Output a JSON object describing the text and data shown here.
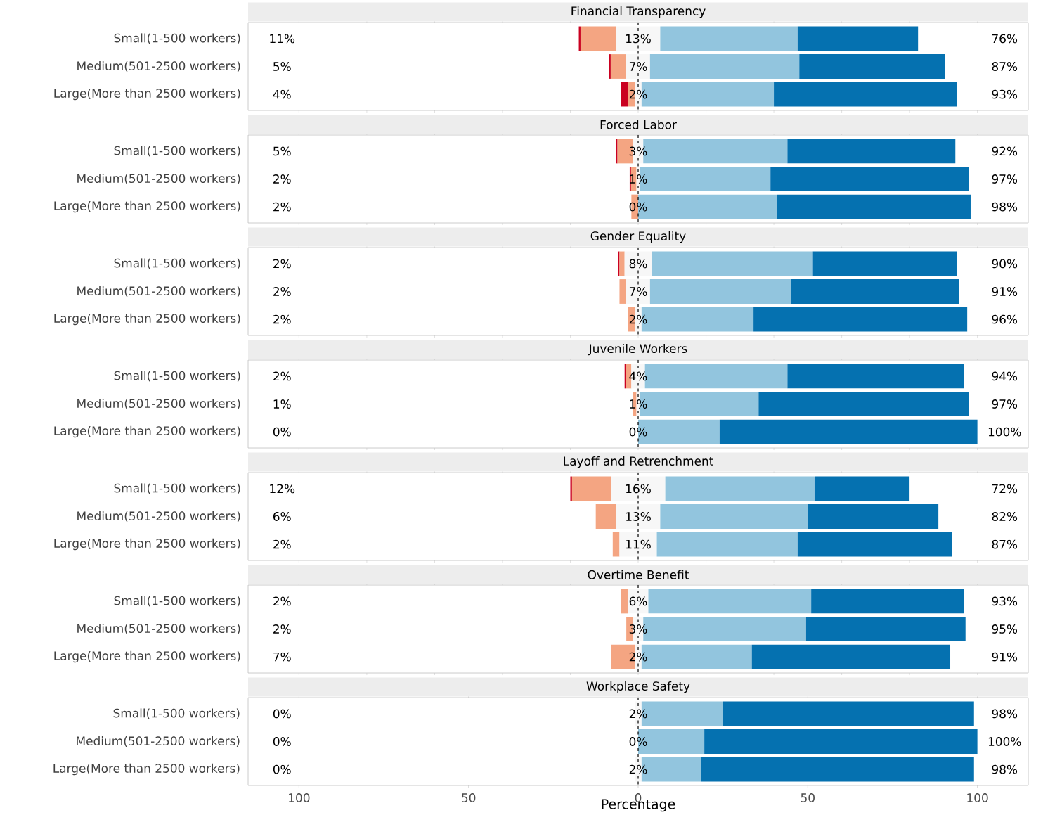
{
  "chart_data": [
    {
      "type": "bar",
      "orientation": "horizontal",
      "title": "Financial Transparency",
      "categories": [
        "Small(1-500 workers)",
        "Medium(501-2500 workers)",
        "Large(More than 2500 workers)"
      ],
      "xlim": [
        -115,
        115
      ],
      "tick_labels": "y",
      "ref_lines": [
        {
          "axis": "x",
          "value": 0,
          "line_style": "dashed"
        }
      ],
      "series": [
        {
          "color": "#ca0020",
          "values": [
            0.5,
            0.4,
            2
          ],
          "base": [
            -17.5,
            -8.5,
            -5
          ]
        },
        {
          "color": "#f4a582",
          "values": [
            10.5,
            4.6,
            2
          ],
          "base": [
            -17,
            -8.1,
            -3
          ]
        },
        {
          "color": "#f7f7f7",
          "values": [
            13,
            7,
            2
          ],
          "base": [
            -6.5,
            -3.5,
            -1
          ],
          "value_labels": [
            "13%",
            "7%",
            "2%"
          ]
        },
        {
          "color": "#92c5de",
          "values": [
            40.5,
            44,
            39
          ],
          "base": [
            6.5,
            3.5,
            1
          ]
        },
        {
          "color": "#0571b0",
          "values": [
            35.5,
            43,
            54
          ],
          "base": [
            47,
            47.5,
            40
          ]
        }
      ],
      "annotations": [
        "11%",
        "76%",
        "5%",
        "87%",
        "4%",
        "93%"
      ]
    },
    {
      "type": "bar",
      "orientation": "horizontal",
      "title": "Forced Labor",
      "categories": [
        "Small(1-500 workers)",
        "Medium(501-2500 workers)",
        "Large(More than 2500 workers)"
      ],
      "xlim": [
        -115,
        115
      ],
      "tick_labels": "y",
      "ref_lines": [
        {
          "axis": "x",
          "value": 0,
          "line_style": "dashed"
        }
      ],
      "series": [
        {
          "color": "#ca0020",
          "values": [
            0.4,
            0.4,
            null
          ],
          "base": [
            -6.5,
            -2.5,
            null
          ]
        },
        {
          "color": "#f4a582",
          "values": [
            4.6,
            1.6,
            2
          ],
          "base": [
            -6.1,
            -2.1,
            -2
          ]
        },
        {
          "color": "#f7f7f7",
          "values": [
            3,
            1,
            0
          ],
          "base": [
            -1.5,
            -0.5,
            null
          ],
          "value_labels": [
            "3%",
            "1%",
            "0%"
          ]
        },
        {
          "color": "#92c5de",
          "values": [
            42.5,
            38.5,
            41
          ],
          "base": [
            1.5,
            0.5,
            0
          ]
        },
        {
          "color": "#0571b0",
          "values": [
            49.5,
            58.5,
            57
          ],
          "base": [
            44,
            39,
            41
          ]
        }
      ],
      "annotations": [
        "5%",
        "92%",
        "2%",
        "97%",
        "2%",
        "98%"
      ]
    },
    {
      "type": "bar",
      "orientation": "horizontal",
      "title": "Gender Equality",
      "categories": [
        "Small(1-500 workers)",
        "Medium(501-2500 workers)",
        "Large(More than 2500 workers)"
      ],
      "xlim": [
        -115,
        115
      ],
      "tick_labels": "y",
      "ref_lines": [
        {
          "axis": "x",
          "value": 0,
          "line_style": "dashed"
        }
      ],
      "series": [
        {
          "color": "#ca0020",
          "values": [
            0.5,
            null,
            null
          ],
          "base": [
            -6,
            null,
            null
          ]
        },
        {
          "color": "#f4a582",
          "values": [
            1.5,
            2,
            2
          ],
          "base": [
            -5.5,
            -5.5,
            -3
          ]
        },
        {
          "color": "#f7f7f7",
          "values": [
            8,
            7,
            2
          ],
          "base": [
            -4,
            -3.5,
            -1
          ],
          "value_labels": [
            "8%",
            "7%",
            "2%"
          ]
        },
        {
          "color": "#92c5de",
          "values": [
            47.5,
            41.5,
            33
          ],
          "base": [
            4,
            3.5,
            1
          ]
        },
        {
          "color": "#0571b0",
          "values": [
            42.5,
            49.5,
            63
          ],
          "base": [
            51.5,
            45,
            34
          ]
        }
      ],
      "annotations": [
        "2%",
        "90%",
        "2%",
        "91%",
        "2%",
        "96%"
      ]
    },
    {
      "type": "bar",
      "orientation": "horizontal",
      "title": "Juvenile Workers",
      "categories": [
        "Small(1-500 workers)",
        "Medium(501-2500 workers)",
        "Large(More than 2500 workers)"
      ],
      "xlim": [
        -115,
        115
      ],
      "tick_labels": "y",
      "ref_lines": [
        {
          "axis": "x",
          "value": 0,
          "line_style": "dashed"
        }
      ],
      "series": [
        {
          "color": "#ca0020",
          "values": [
            0.4,
            null,
            null
          ],
          "base": [
            -4,
            null,
            null
          ]
        },
        {
          "color": "#f4a582",
          "values": [
            1.6,
            1,
            null
          ],
          "base": [
            -3.6,
            -1.5,
            null
          ]
        },
        {
          "color": "#f7f7f7",
          "values": [
            4,
            1,
            0
          ],
          "base": [
            -2,
            -0.5,
            null
          ],
          "value_labels": [
            "4%",
            "1%",
            "0%"
          ]
        },
        {
          "color": "#92c5de",
          "values": [
            42,
            35,
            24
          ],
          "base": [
            2,
            0.5,
            0
          ]
        },
        {
          "color": "#0571b0",
          "values": [
            52,
            62,
            76
          ],
          "base": [
            44,
            35.5,
            24
          ]
        }
      ],
      "annotations": [
        "2%",
        "94%",
        "1%",
        "97%",
        "0%",
        "100%"
      ]
    },
    {
      "type": "bar",
      "orientation": "horizontal",
      "title": "Layoff and Retrenchment",
      "categories": [
        "Small(1-500 workers)",
        "Medium(501-2500 workers)",
        "Large(More than 2500 workers)"
      ],
      "xlim": [
        -115,
        115
      ],
      "tick_labels": "y",
      "ref_lines": [
        {
          "axis": "x",
          "value": 0,
          "line_style": "dashed"
        }
      ],
      "series": [
        {
          "color": "#ca0020",
          "values": [
            0.5,
            null,
            null
          ],
          "base": [
            -20,
            null,
            null
          ]
        },
        {
          "color": "#f4a582",
          "values": [
            11.5,
            6,
            2
          ],
          "base": [
            -19.5,
            -12.5,
            -7.5
          ]
        },
        {
          "color": "#f7f7f7",
          "values": [
            16,
            13,
            11
          ],
          "base": [
            -8,
            -6.5,
            -5.5
          ],
          "value_labels": [
            "16%",
            "13%",
            "11%"
          ]
        },
        {
          "color": "#92c5de",
          "values": [
            44,
            43.5,
            41.5
          ],
          "base": [
            8,
            6.5,
            5.5
          ]
        },
        {
          "color": "#0571b0",
          "values": [
            28,
            38.5,
            45.5
          ],
          "base": [
            52,
            50,
            47
          ]
        }
      ],
      "annotations": [
        "12%",
        "72%",
        "6%",
        "82%",
        "2%",
        "87%"
      ]
    },
    {
      "type": "bar",
      "orientation": "horizontal",
      "title": "Overtime Benefit",
      "categories": [
        "Small(1-500 workers)",
        "Medium(501-2500 workers)",
        "Large(More than 2500 workers)"
      ],
      "xlim": [
        -115,
        115
      ],
      "tick_labels": "y",
      "ref_lines": [
        {
          "axis": "x",
          "value": 0,
          "line_style": "dashed"
        }
      ],
      "series": [
        {
          "color": "#f4a582",
          "values": [
            2,
            2,
            7
          ],
          "base": [
            -5,
            -3.5,
            -8
          ]
        },
        {
          "color": "#f7f7f7",
          "values": [
            6,
            3,
            2
          ],
          "base": [
            -3,
            -1.5,
            -1
          ],
          "value_labels": [
            "6%",
            "3%",
            "2%"
          ]
        },
        {
          "color": "#92c5de",
          "values": [
            48,
            48,
            32.5
          ],
          "base": [
            3,
            1.5,
            1
          ]
        },
        {
          "color": "#0571b0",
          "values": [
            45,
            47,
            58.5
          ],
          "base": [
            51,
            49.5,
            33.5
          ]
        }
      ],
      "annotations": [
        "2%",
        "93%",
        "2%",
        "95%",
        "7%",
        "91%"
      ]
    },
    {
      "type": "bar",
      "orientation": "horizontal",
      "title": "Workplace Safety",
      "xlabel": "Percentage",
      "categories": [
        "Small(1-500 workers)",
        "Medium(501-2500 workers)",
        "Large(More than 2500 workers)"
      ],
      "xlim": [
        -115,
        115
      ],
      "xticks": [
        {
          "value": -100,
          "label": "100"
        },
        {
          "value": -50,
          "label": "50"
        },
        0,
        50,
        100
      ],
      "ref_lines": [
        {
          "axis": "x",
          "value": 0,
          "line_style": "dashed"
        }
      ],
      "series": [
        {
          "color": "#f7f7f7",
          "values": [
            2,
            0,
            2
          ],
          "base": [
            -1,
            null,
            -1
          ],
          "value_labels": [
            "2%",
            "0%",
            "2%"
          ]
        },
        {
          "color": "#92c5de",
          "values": [
            24,
            19.5,
            17.5
          ],
          "base": [
            1,
            0,
            1
          ]
        },
        {
          "color": "#0571b0",
          "values": [
            74,
            80.5,
            80.5
          ],
          "base": [
            25,
            19.5,
            18.5
          ]
        }
      ],
      "annotations": [
        "0%",
        "98%",
        "0%",
        "100%",
        "0%",
        "98%"
      ]
    }
  ]
}
